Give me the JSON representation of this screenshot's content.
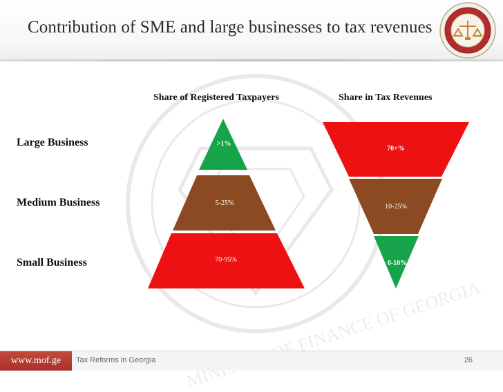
{
  "slide": {
    "title": "Contribution of SME and large businesses to tax revenues",
    "page_number": "26",
    "footer_text": "Tax Reforms in Georgia",
    "website": "www.mof.ge",
    "watermark_text": "MINISTRY OF FINANCE OF GEORGIA"
  },
  "columns": {
    "left_header": "Share of Registered Taxpayers",
    "right_header": "Share in Tax Revenues"
  },
  "rows": [
    {
      "label": "Large Business"
    },
    {
      "label": "Medium Business"
    },
    {
      "label": "Small Business"
    }
  ],
  "pyramid": {
    "segments": [
      {
        "value": ">1%",
        "color": "#16a34a"
      },
      {
        "value": "5-25%",
        "color": "#8b4a22"
      },
      {
        "value": "70-95%",
        "color": "#ee1111"
      }
    ]
  },
  "inverted_pyramid": {
    "segments": [
      {
        "value": "70+%",
        "color": "#ee1111"
      },
      {
        "value": "10-25%",
        "color": "#8b4a22"
      },
      {
        "value": "0-10%",
        "color": "#16a34a"
      }
    ]
  },
  "colors": {
    "large": "#16a34a",
    "medium": "#8b4a22",
    "small": "#ee1111",
    "mof_badge": "#b23a2e"
  }
}
